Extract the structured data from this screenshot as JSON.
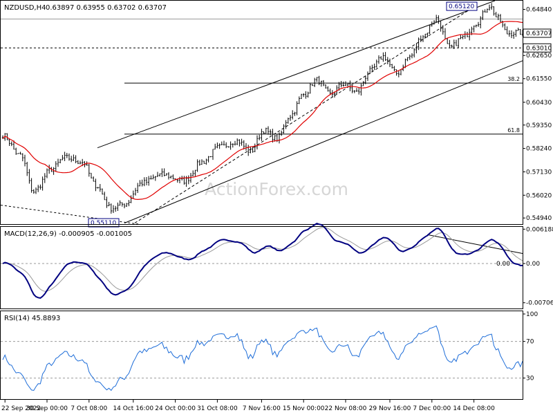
{
  "chart_data": [
    {
      "type": "candlestick",
      "symbol_label": "NZDUSD,H4",
      "ohlc_label": "0.63897 0.63955 0.63702 0.63707",
      "ylim": [
        0.5465,
        0.6525
      ],
      "ticks": [
        "0.64840",
        "0.62650",
        "0.61550",
        "0.60430",
        "0.59350",
        "0.58240",
        "0.57130",
        "0.56020",
        "0.54940"
      ],
      "last_price": "0.63707",
      "prior_high_line": "0.64380",
      "support_line": "0.63010",
      "peak_label": "0.65120",
      "trough_label": "0.55110",
      "fib_levels": [
        {
          "label": "38.2",
          "value": 0.6134
        },
        {
          "label": "61.8",
          "value": 0.5892
        }
      ],
      "moving_average": "red line following price",
      "watermark": "ActionForex.com",
      "path_knots": [
        [
          0,
          0.5885
        ],
        [
          8,
          0.579
        ],
        [
          14,
          0.562
        ],
        [
          22,
          0.5725
        ],
        [
          28,
          0.578
        ],
        [
          36,
          0.576
        ],
        [
          42,
          0.565
        ],
        [
          49,
          0.554
        ],
        [
          55,
          0.556
        ],
        [
          63,
          0.566
        ],
        [
          72,
          0.57
        ],
        [
          82,
          0.567
        ],
        [
          90,
          0.576
        ],
        [
          98,
          0.583
        ],
        [
          106,
          0.586
        ],
        [
          112,
          0.581
        ],
        [
          118,
          0.591
        ],
        [
          124,
          0.587
        ],
        [
          130,
          0.598
        ],
        [
          136,
          0.608
        ],
        [
          142,
          0.615
        ],
        [
          148,
          0.608
        ],
        [
          154,
          0.613
        ],
        [
          160,
          0.609
        ],
        [
          166,
          0.619
        ],
        [
          172,
          0.626
        ],
        [
          178,
          0.618
        ],
        [
          184,
          0.626
        ],
        [
          190,
          0.636
        ],
        [
          196,
          0.644
        ],
        [
          202,
          0.63
        ],
        [
          208,
          0.635
        ],
        [
          214,
          0.642
        ],
        [
          220,
          0.65
        ],
        [
          224,
          0.644
        ],
        [
          228,
          0.637
        ],
        [
          233,
          0.6375
        ]
      ]
    },
    {
      "type": "line",
      "title": "MACD(12,26,9) -0.000905 -0.001005",
      "ylim": [
        -0.0081,
        0.0066
      ],
      "ticks": [
        "0.006188",
        "0.00",
        "-0.007068"
      ],
      "zero_label": "0.00",
      "series": [
        {
          "name": "MACD",
          "color": "#000080"
        },
        {
          "name": "signal",
          "color": "#999999"
        }
      ]
    },
    {
      "type": "line",
      "title": "RSI(14) 45.8893",
      "ylim": [
        7,
        103
      ],
      "ticks": [
        "100",
        "70",
        "30"
      ],
      "levels": [
        70,
        30
      ],
      "series": [
        {
          "name": "RSI",
          "color": "#1c6cd8"
        }
      ]
    }
  ],
  "x_ticks": [
    {
      "label": "22 Sep 2022",
      "bar": 1
    },
    {
      "label": "30 Sep 00:00",
      "bar": 20
    },
    {
      "label": "7 Oct 08:00",
      "bar": 39
    },
    {
      "label": "14 Oct 16:00",
      "bar": 59
    },
    {
      "label": "24 Oct 00:00",
      "bar": 78
    },
    {
      "label": "31 Oct 08:00",
      "bar": 97
    },
    {
      "label": "7 Nov 16:00",
      "bar": 117
    },
    {
      "label": "15 Nov 00:00",
      "bar": 136
    },
    {
      "label": "22 Nov 08:00",
      "bar": 155
    },
    {
      "label": "29 Nov 16:00",
      "bar": 175
    },
    {
      "label": "7 Dec 00:00",
      "bar": 194
    },
    {
      "label": "14 Dec 08:00",
      "bar": 213
    }
  ],
  "colors": {
    "ma": "#e00000",
    "macd": "#000080",
    "signal": "#999999",
    "rsi": "#1c6cd8",
    "candle": "#000000"
  }
}
